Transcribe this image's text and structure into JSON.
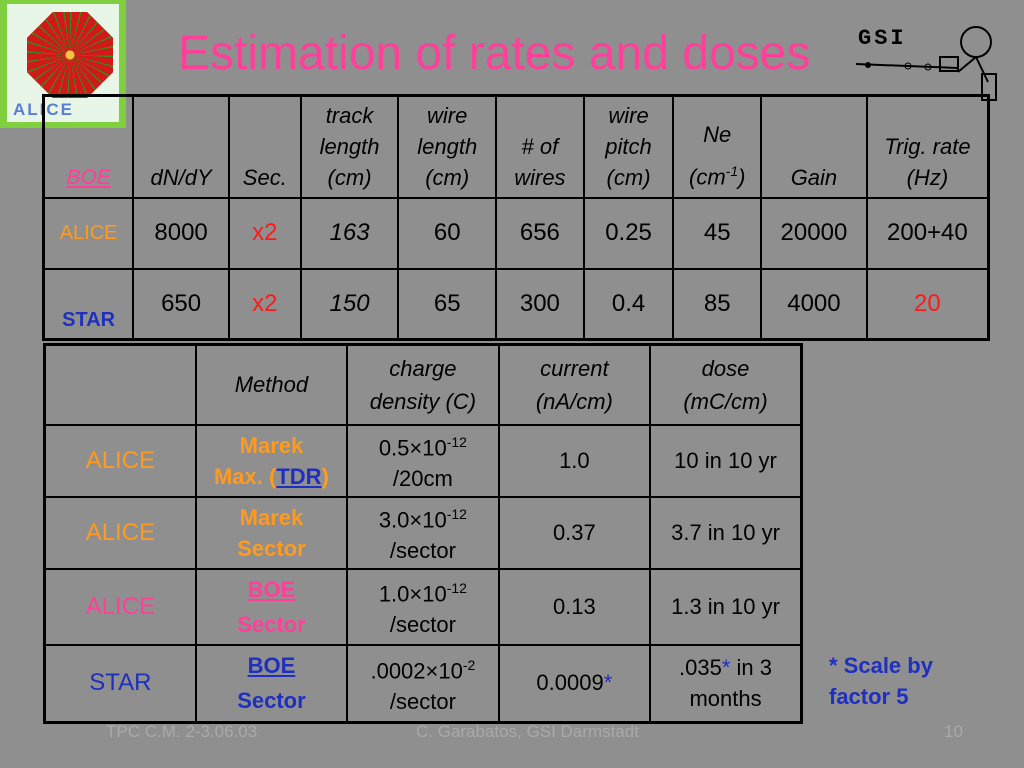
{
  "title": "Estimation of rates and doses",
  "logo_left_text": "ALICE",
  "logo_right_text": "GSI",
  "table1": {
    "headers": {
      "col0": "BOE",
      "col1": "dN/dY",
      "col2": "Sec.",
      "col3_l1": "track",
      "col3_l2": "length",
      "col3_l3": "(cm)",
      "col4_l1": "wire",
      "col4_l2": "length",
      "col4_l3": "(cm)",
      "col5_l1": "# of",
      "col5_l2": "wires",
      "col6_l1": "wire",
      "col6_l2": "pitch",
      "col6_l3": "(cm)",
      "col7_l1": "Ne",
      "col7_l2a": "(cm",
      "col7_sup": "-1",
      "col7_l2b": ")",
      "col8": "Gain",
      "col9_l1": "Trig. rate",
      "col9_l2": "(Hz)"
    },
    "rows": [
      {
        "label": "ALICE",
        "dndy": "8000",
        "sec": "x2",
        "track": "163",
        "wire_len": "60",
        "wires": "656",
        "pitch": "0.25",
        "ne": "45",
        "gain": "20000",
        "trig": "200+40"
      },
      {
        "label": "STAR",
        "dndy": "650",
        "sec": "x2",
        "track": "150",
        "wire_len": "65",
        "wires": "300",
        "pitch": "0.4",
        "ne": "85",
        "gain": "4000",
        "trig": "20"
      }
    ]
  },
  "table2": {
    "headers": {
      "method": "Method",
      "charge_l1": "charge",
      "charge_l2": "density (C)",
      "current_l1": "current",
      "current_l2": "(nA/cm)",
      "dose_l1": "dose",
      "dose_l2": "(mC/cm)"
    },
    "rows": [
      {
        "label": "ALICE",
        "method_l1": "Marek",
        "method_l2a": "Max. (",
        "method_link": "TDR",
        "method_l2b": ")",
        "charge_base": "0.5×10",
        "charge_exp": "-12",
        "charge_unit": "/20cm",
        "current": "1.0",
        "dose": "10 in 10 yr"
      },
      {
        "label": "ALICE",
        "method_l1": "Marek",
        "method_l2": "Sector",
        "charge_base": "3.0×10",
        "charge_exp": "-12",
        "charge_unit": "/sector",
        "current": "0.37",
        "dose": "3.7 in 10 yr"
      },
      {
        "label": "ALICE",
        "method_l1": "BOE",
        "method_l2": "Sector",
        "charge_base": "1.0×10",
        "charge_exp": "-12",
        "charge_unit": "/sector",
        "current": "0.13",
        "dose": "1.3 in 10 yr"
      },
      {
        "label": "STAR",
        "method_l1": "BOE",
        "method_l2": "Sector",
        "charge_base": ".0002×10",
        "charge_exp": "-2",
        "charge_unit": "/sector",
        "current": "0.0009",
        "current_star": "*",
        "dose_l1a": ".035",
        "dose_star": "*",
        "dose_l1b": " in 3",
        "dose_l2": "months"
      }
    ]
  },
  "note_l1": "* Scale by",
  "note_l2": "factor 5",
  "footer": {
    "left": "TPC C.M. 2-3.06.03",
    "center": "C. Garabatos, GSI Darmstadt",
    "page": "10"
  },
  "colors": {
    "background": "#8f8f8f",
    "title": "#ff3f9a",
    "alice_orange": "#ff9a1f",
    "star_blue": "#1f2fbf",
    "red": "#ff1a1a"
  }
}
